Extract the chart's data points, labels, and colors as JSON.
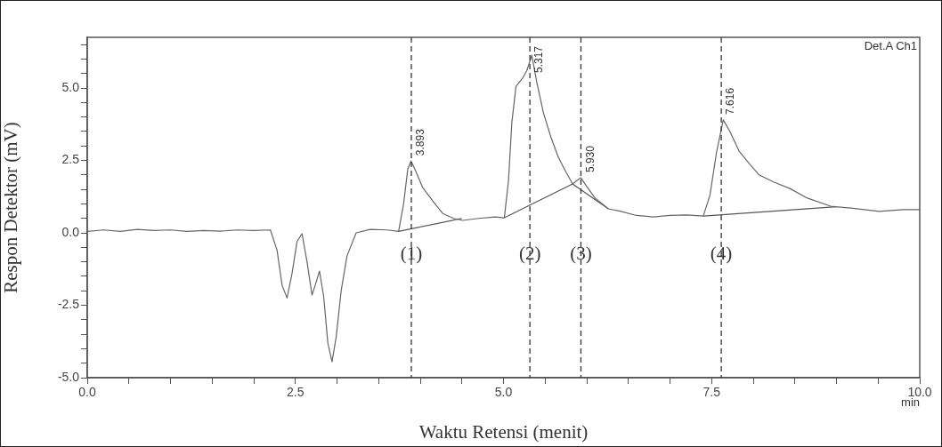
{
  "chart_data": {
    "type": "line",
    "xlabel": "Waktu Retensi (menit)",
    "ylabel": "Respon Detektor (mV)",
    "xlim": [
      0,
      10
    ],
    "xticks": [
      {
        "value": 0,
        "label": "0.0"
      },
      {
        "value": 0.5,
        "label": null
      },
      {
        "value": 1,
        "label": null
      },
      {
        "value": 1.5,
        "label": null
      },
      {
        "value": 2,
        "label": null
      },
      2.5,
      {
        "value": 3,
        "label": null
      },
      {
        "value": 3.5,
        "label": null
      },
      {
        "value": 4,
        "label": null
      },
      {
        "value": 4.5,
        "label": null
      },
      {
        "value": 5,
        "label": "5.0"
      },
      {
        "value": 5.5,
        "label": null
      },
      {
        "value": 6,
        "label": null
      },
      {
        "value": 6.5,
        "label": null
      },
      {
        "value": 7,
        "label": null
      },
      7.5,
      {
        "value": 8,
        "label": null
      },
      {
        "value": 8.5,
        "label": null
      },
      {
        "value": 9,
        "label": null
      },
      {
        "value": 9.5,
        "label": null
      },
      {
        "value": 10,
        "label": "10.0"
      }
    ],
    "ylim": [
      -5,
      6.75
    ],
    "yticks": [
      {
        "value": -5,
        "label": "-5.0"
      },
      {
        "value": -4.5,
        "label": null
      },
      {
        "value": -4,
        "label": null
      },
      {
        "value": -3.5,
        "label": null
      },
      {
        "value": -3,
        "label": null
      },
      -2.5,
      {
        "value": -2,
        "label": null
      },
      {
        "value": -1.5,
        "label": null
      },
      {
        "value": -1,
        "label": null
      },
      {
        "value": -0.5,
        "label": null
      },
      {
        "value": 0,
        "label": "0.0"
      },
      {
        "value": 0.5,
        "label": null
      },
      {
        "value": 1,
        "label": null
      },
      {
        "value": 1.5,
        "label": null
      },
      {
        "value": 2,
        "label": null
      },
      2.5,
      {
        "value": 3,
        "label": null
      },
      {
        "value": 3.5,
        "label": null
      },
      {
        "value": 4,
        "label": null
      },
      {
        "value": 4.5,
        "label": null
      },
      {
        "value": 5,
        "label": "5.0"
      },
      {
        "value": 5.5,
        "label": null
      },
      {
        "value": 6,
        "label": null
      },
      {
        "value": 6.5,
        "label": null
      }
    ],
    "grid": false,
    "legend": false,
    "marker": "none",
    "line_style": "solid",
    "series": [
      {
        "color": "#666666",
        "x": [
          0,
          0.2,
          0.4,
          0.6,
          0.8,
          1.0,
          1.2,
          1.4,
          1.6,
          1.8,
          2.0,
          2.2,
          2.28,
          2.34,
          2.4,
          2.46,
          2.52,
          2.58,
          2.64,
          2.7,
          2.75,
          2.79,
          2.84,
          2.89,
          2.94,
          2.99,
          3.05,
          3.12,
          3.23,
          3.4,
          3.6,
          3.74,
          3.8,
          3.85,
          3.89,
          3.95,
          4.03,
          4.15,
          4.27,
          4.4,
          4.51,
          4.7,
          4.9,
          5.01,
          5.06,
          5.1,
          5.15,
          5.23,
          5.28,
          5.34,
          5.4,
          5.48,
          5.57,
          5.66,
          5.75,
          5.83,
          5.88,
          5.93,
          6.0,
          6.1,
          6.26,
          6.4,
          6.6,
          6.8,
          7.0,
          7.2,
          7.4,
          7.48,
          7.56,
          7.64,
          7.72,
          7.83,
          7.95,
          8.07,
          8.25,
          8.44,
          8.65,
          8.93,
          9.2,
          9.51,
          9.8,
          10
        ],
        "values": [
          0.05,
          0.1,
          0.05,
          0.12,
          0.08,
          0.1,
          0.05,
          0.08,
          0.06,
          0.1,
          0.08,
          0.1,
          -0.6,
          -1.8,
          -2.25,
          -1.4,
          -0.3,
          -0.03,
          -1.0,
          -2.15,
          -1.7,
          -1.32,
          -2.2,
          -3.8,
          -4.45,
          -3.6,
          -2.0,
          -0.8,
          0.0,
          0.12,
          0.1,
          0.05,
          1.0,
          2.2,
          2.48,
          2.1,
          1.56,
          1.1,
          0.67,
          0.5,
          0.43,
          0.5,
          0.55,
          0.52,
          1.8,
          3.8,
          5.06,
          5.34,
          5.6,
          6.13,
          5.2,
          4.14,
          3.3,
          2.6,
          2.1,
          1.69,
          1.8,
          1.9,
          1.6,
          1.2,
          0.83,
          0.75,
          0.6,
          0.55,
          0.6,
          0.62,
          0.58,
          1.3,
          2.8,
          3.9,
          3.5,
          2.82,
          2.4,
          2.0,
          1.75,
          1.53,
          1.2,
          0.92,
          0.85,
          0.74,
          0.8,
          0.8
        ]
      },
      {
        "type": "line",
        "color": "#555555",
        "x": [
          3.74,
          4.5
        ],
        "values": [
          0.05,
          0.5
        ]
      },
      {
        "type": "line",
        "color": "#555555",
        "x": [
          5.01,
          5.83,
          6.26
        ],
        "values": [
          0.52,
          1.69,
          0.83
        ]
      },
      {
        "type": "line",
        "color": "#555555",
        "x": [
          7.4,
          9.0
        ],
        "values": [
          0.58,
          0.9
        ]
      }
    ],
    "ref_lines": [
      {
        "axis": "x",
        "value": 3.893,
        "label": "3.893",
        "color": "#333333",
        "line_style": "dashed"
      },
      {
        "axis": "x",
        "value": 5.317,
        "label": "5.317",
        "color": "#333333",
        "line_style": "dashed"
      },
      {
        "axis": "x",
        "value": 5.93,
        "label": "5.930",
        "color": "#333333",
        "line_style": "dashed"
      },
      {
        "axis": "x",
        "value": 7.616,
        "label": "7.616",
        "color": "#333333",
        "line_style": "dashed"
      }
    ],
    "annotations": [
      "Det.A Ch1",
      "min",
      {
        "text": "(1)",
        "x": 3.893,
        "y": -0.75
      },
      {
        "text": "(2)",
        "x": 5.317,
        "y": -0.75
      },
      {
        "text": "(3)",
        "x": 5.93,
        "y": -0.75
      },
      {
        "text": "(4)",
        "x": 7.616,
        "y": -0.75
      }
    ]
  }
}
